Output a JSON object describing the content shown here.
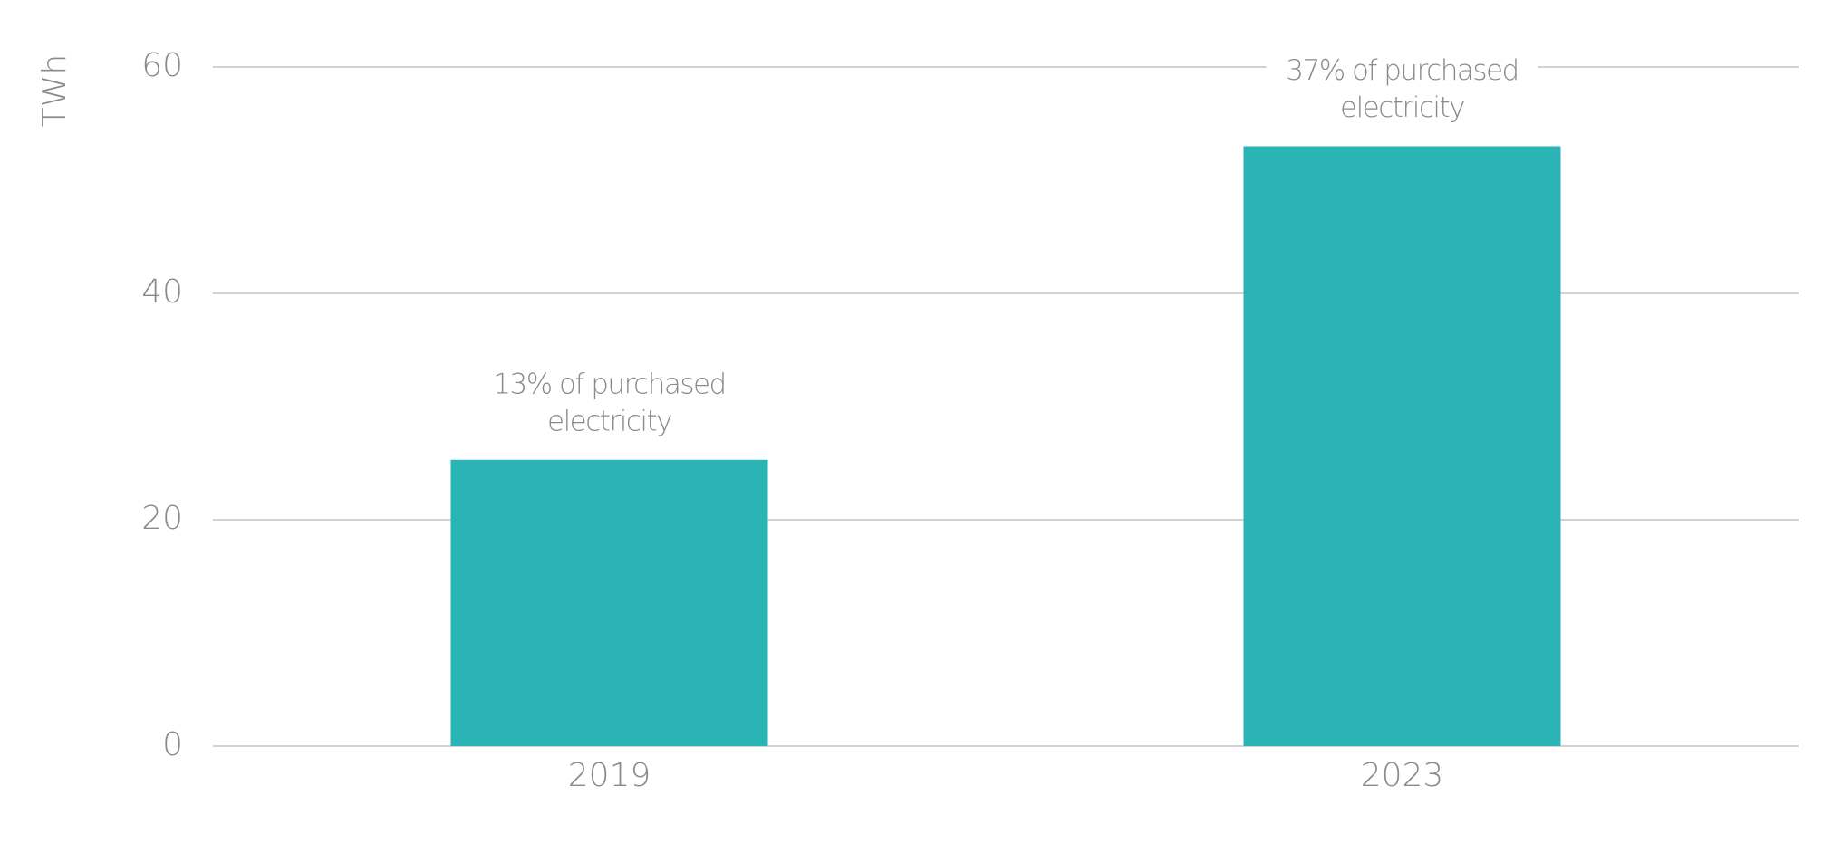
{
  "chart_data": {
    "type": "bar",
    "y_label": "TWh",
    "categories": [
      "2019",
      "2023"
    ],
    "values": [
      25.3,
      53
    ],
    "annotations": [
      [
        "13% of purchased",
        "electricity"
      ],
      [
        "37% of purchased",
        "electricity"
      ]
    ],
    "color": "#2bb4b5",
    "ylim": [
      0,
      60
    ],
    "yticks": [
      0,
      20,
      40,
      60
    ],
    "grid": true
  }
}
